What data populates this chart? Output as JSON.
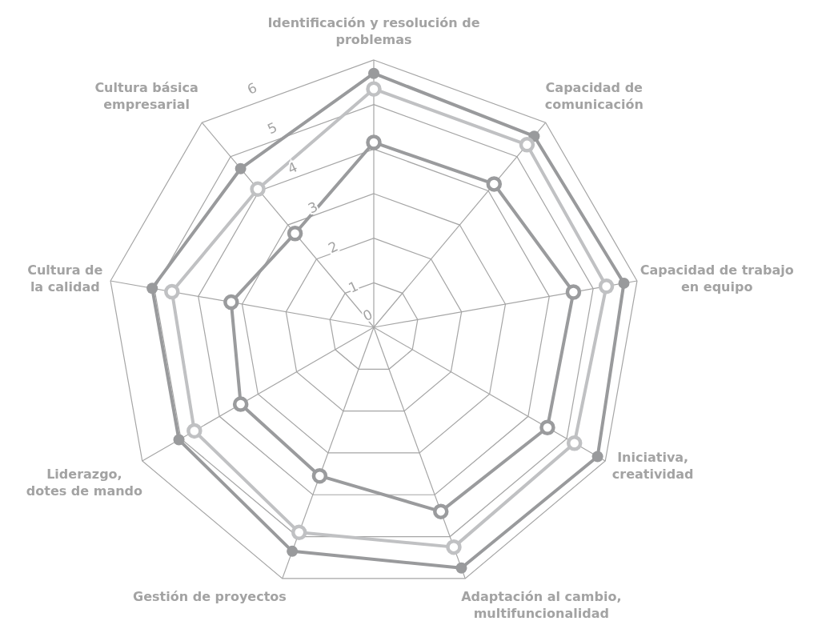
{
  "chart_data": {
    "type": "radar",
    "categories": [
      "Identificación y resolución de\nproblemas",
      "Capacidad de\ncomunicación",
      "Capacidad de trabajo\nen equipo",
      "Iniciativa,\ncreatividad",
      "Adaptación al cambio,\nmultifuncionalidad",
      "Gestión de proyectos",
      "Liderazgo,\ndotes de mando",
      "Cultura de\nla calidad",
      "Cultura básica\nempresarial"
    ],
    "series": [
      {
        "color": "#999a9c",
        "values": [
          5.7,
          5.6,
          5.7,
          5.8,
          5.75,
          5.35,
          5.05,
          5.05,
          4.65
        ]
      },
      {
        "color": "#c0c1c3",
        "values": [
          5.35,
          5.35,
          5.3,
          5.2,
          5.25,
          4.9,
          4.65,
          4.6,
          4.05
        ]
      },
      {
        "color": "#9a9b9d",
        "values": [
          4.15,
          4.2,
          4.55,
          4.5,
          4.4,
          3.55,
          3.45,
          3.25,
          2.75
        ]
      }
    ],
    "ylim": [
      0,
      6
    ],
    "yticks": [
      0,
      1,
      2,
      3,
      4,
      5,
      6
    ],
    "grid": true,
    "marker": "circle",
    "line_style": "solid"
  }
}
